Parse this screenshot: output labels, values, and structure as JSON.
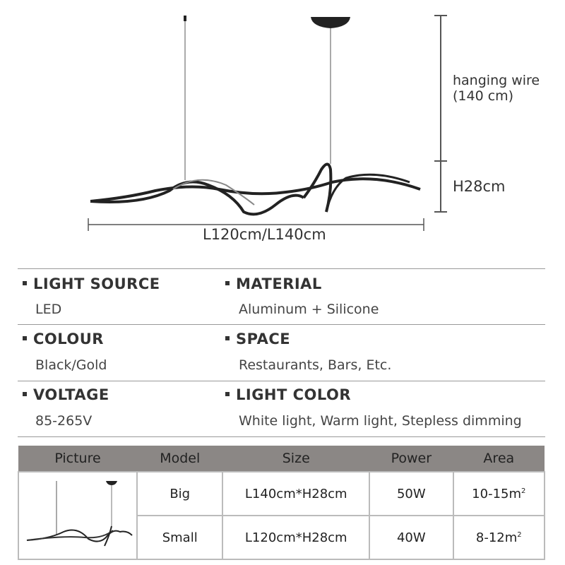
{
  "diagram": {
    "wire_label_line1": "hanging wire",
    "wire_label_line2": "(140 cm)",
    "height_label": "H28cm",
    "length_label": "L120cm/L140cm"
  },
  "specs": [
    {
      "title": "LIGHT SOURCE",
      "value": "LED"
    },
    {
      "title": "MATERIAL",
      "value": "Aluminum + Silicone"
    },
    {
      "title": "COLOUR",
      "value": "Black/Gold"
    },
    {
      "title": "SPACE",
      "value": "Restaurants, Bars, Etc."
    },
    {
      "title": "VOLTAGE",
      "value": "85-265V"
    },
    {
      "title": "LIGHT COLOR",
      "value": "White light, Warm light, Stepless dimming"
    }
  ],
  "table": {
    "headers": [
      "Picture",
      "Model",
      "Size",
      "Power",
      "Area"
    ],
    "rows": [
      {
        "model": "Big",
        "size": "L140cm*H28cm",
        "power": "50W",
        "area": "10-15m",
        "area_sup": "2"
      },
      {
        "model": "Small",
        "size": "L120cm*H28cm",
        "power": "40W",
        "area": "8-12m",
        "area_sup": "2"
      }
    ],
    "header_color": "#8b8785"
  }
}
